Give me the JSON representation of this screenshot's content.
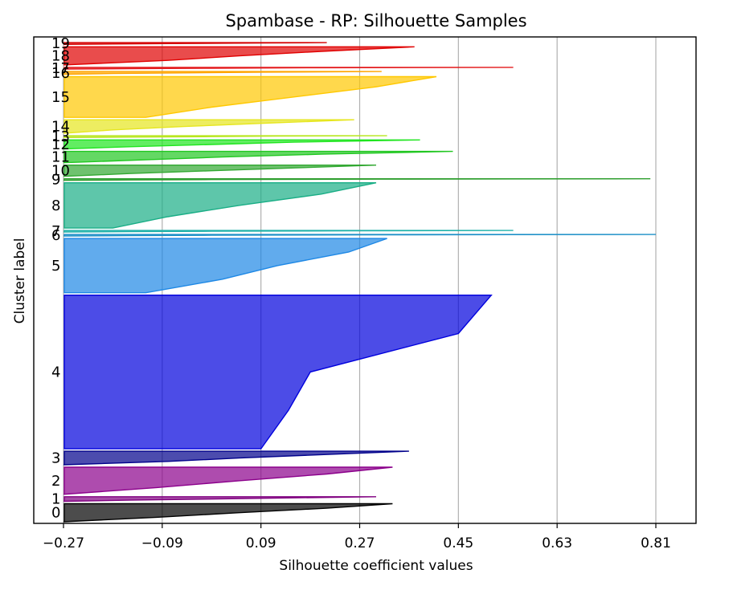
{
  "chart_data": {
    "type": "area",
    "title": "Spambase - RP: Silhouette Samples",
    "xlabel": "Silhouette coefficient values",
    "ylabel": "Cluster label",
    "xlim": [
      -0.27,
      0.81
    ],
    "x_ticks": [
      -0.27,
      -0.09,
      0.09,
      0.27,
      0.45,
      0.63,
      0.81
    ],
    "x_tick_labels": [
      "−0.27",
      "−0.09",
      "0.09",
      "0.27",
      "0.45",
      "0.63",
      "0.81"
    ],
    "grid": "x",
    "clusters": [
      {
        "label": "0",
        "color": "#000000",
        "size_share": 0.04,
        "max": 0.33,
        "p75": 0.21,
        "median": 0.05,
        "p25": -0.1,
        "min": -0.27
      },
      {
        "label": "1",
        "color": "#800080",
        "size_share": 0.01,
        "max": 0.3,
        "p75": 0.15,
        "median": 0.0,
        "p25": -0.15,
        "min": -0.27
      },
      {
        "label": "2",
        "color": "#8b008b",
        "size_share": 0.06,
        "max": 0.33,
        "p75": 0.21,
        "median": 0.05,
        "p25": -0.1,
        "min": -0.27
      },
      {
        "label": "3",
        "color": "#00008b",
        "size_share": 0.03,
        "max": 0.36,
        "p75": 0.2,
        "median": 0.05,
        "p25": -0.08,
        "min": -0.27
      },
      {
        "label": "4",
        "color": "#0000dd",
        "size_share": 0.34,
        "max": 0.51,
        "p75": 0.45,
        "median": 0.18,
        "p25": 0.14,
        "min": 0.09
      },
      {
        "label": "5",
        "color": "#1e88e5",
        "size_share": 0.12,
        "max": 0.32,
        "p75": 0.25,
        "median": 0.12,
        "p25": 0.02,
        "min": -0.12
      },
      {
        "label": "6",
        "color": "#1e90c8",
        "size_share": 0.003,
        "max": 0.81,
        "p75": 0.3,
        "median": 0.0,
        "p25": -0.15,
        "min": -0.27
      },
      {
        "label": "7",
        "color": "#20b2aa",
        "size_share": 0.003,
        "max": 0.55,
        "p75": 0.25,
        "median": 0.0,
        "p25": -0.15,
        "min": -0.27
      },
      {
        "label": "8",
        "color": "#1aae86",
        "size_share": 0.1,
        "max": 0.3,
        "p75": 0.2,
        "median": 0.05,
        "p25": -0.08,
        "min": -0.18
      },
      {
        "label": "9",
        "color": "#2e9e2e",
        "size_share": 0.003,
        "max": 0.8,
        "p75": 0.3,
        "median": 0.0,
        "p25": -0.15,
        "min": -0.27
      },
      {
        "label": "10",
        "color": "#32a832",
        "size_share": 0.025,
        "max": 0.3,
        "p75": 0.15,
        "median": 0.0,
        "p25": -0.15,
        "min": -0.27
      },
      {
        "label": "11",
        "color": "#22c722",
        "size_share": 0.025,
        "max": 0.44,
        "p75": 0.2,
        "median": 0.02,
        "p25": -0.12,
        "min": -0.27
      },
      {
        "label": "12",
        "color": "#1fe51f",
        "size_share": 0.02,
        "max": 0.38,
        "p75": 0.15,
        "median": 0.0,
        "p25": -0.15,
        "min": -0.27
      },
      {
        "label": "13",
        "color": "#b8e61e",
        "size_share": 0.004,
        "max": 0.32,
        "p75": 0.12,
        "median": 0.0,
        "p25": -0.15,
        "min": -0.27
      },
      {
        "label": "14",
        "color": "#e6e61e",
        "size_share": 0.03,
        "max": 0.26,
        "p75": 0.1,
        "median": -0.05,
        "p25": -0.18,
        "min": -0.27
      },
      {
        "label": "15",
        "color": "#ffc800",
        "size_share": 0.09,
        "max": 0.41,
        "p75": 0.3,
        "median": 0.15,
        "p25": 0.0,
        "min": -0.12
      },
      {
        "label": "16",
        "color": "#ffa500",
        "size_share": 0.006,
        "max": 0.31,
        "p75": 0.1,
        "median": -0.05,
        "p25": -0.18,
        "min": -0.27
      },
      {
        "label": "17",
        "color": "#e41a1c",
        "size_share": 0.004,
        "max": 0.55,
        "p75": 0.2,
        "median": 0.0,
        "p25": -0.15,
        "min": -0.27
      },
      {
        "label": "18",
        "color": "#e00000",
        "size_share": 0.04,
        "max": 0.37,
        "p75": 0.2,
        "median": 0.05,
        "p25": -0.08,
        "min": -0.27
      },
      {
        "label": "19",
        "color": "#d40000",
        "size_share": 0.004,
        "max": 0.21,
        "p75": 0.1,
        "median": -0.05,
        "p25": -0.18,
        "min": -0.27
      }
    ]
  }
}
